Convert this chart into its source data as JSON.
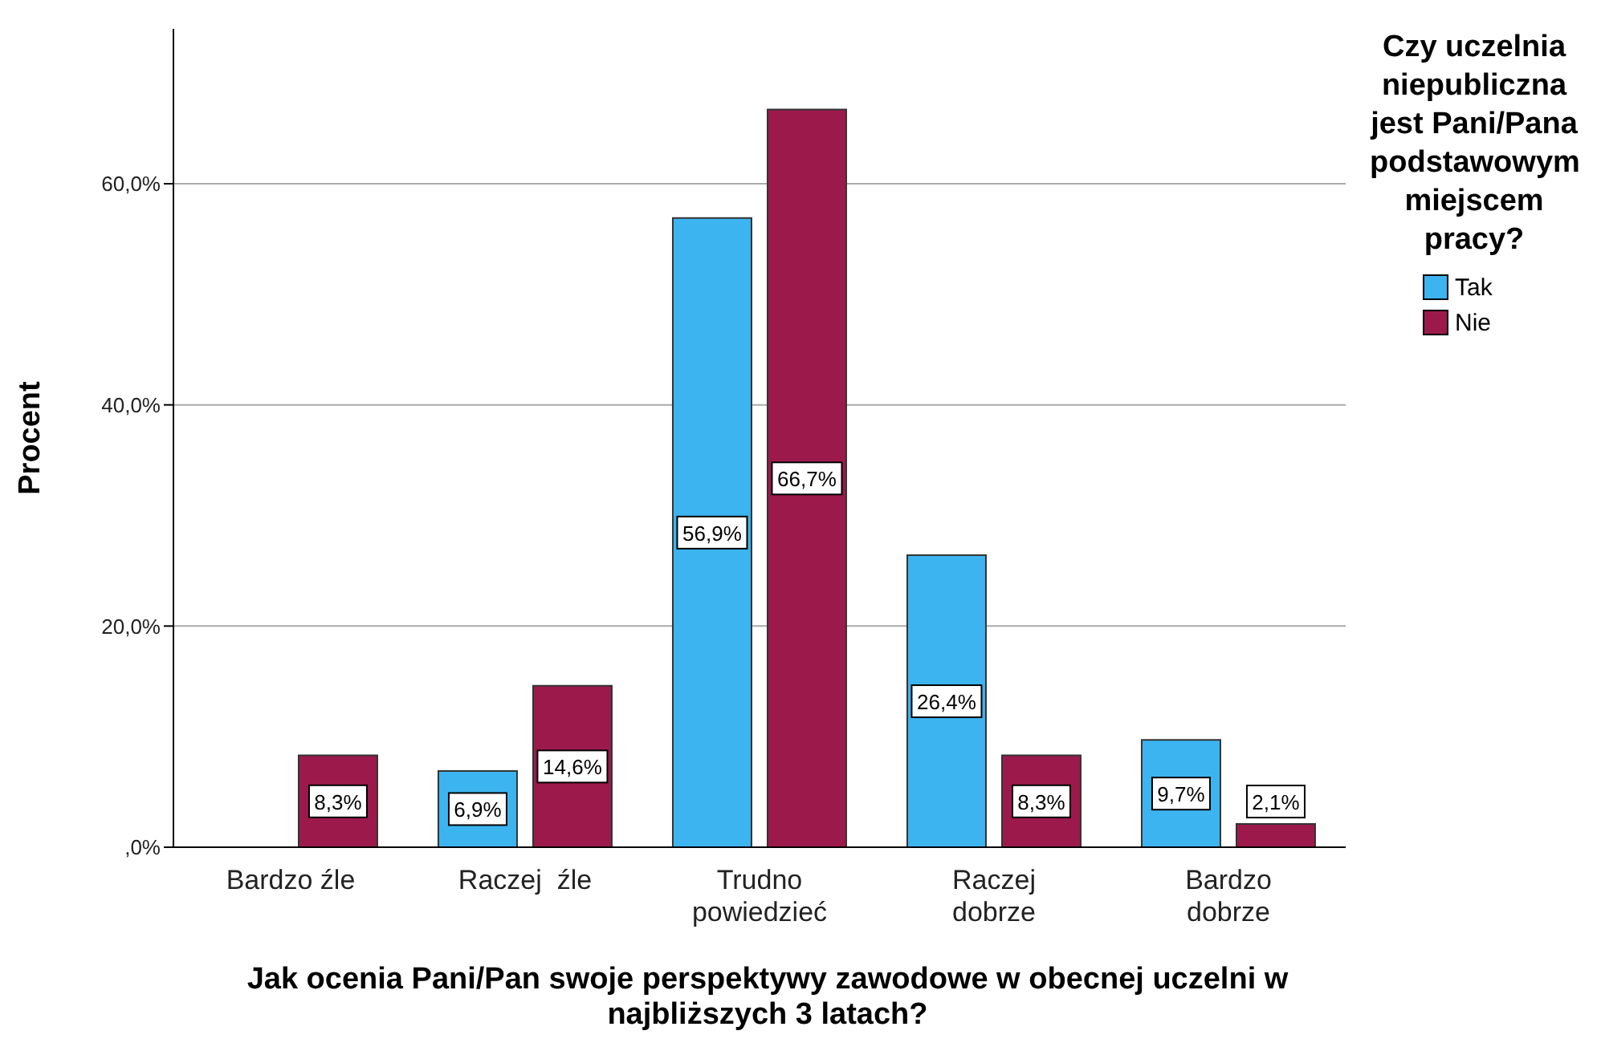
{
  "chart_data": {
    "type": "bar",
    "categories": [
      "Bardzo źle",
      "Raczej  źle",
      "Trudno\npowiedzieć",
      "Raczej\ndobrze",
      "Bardzo\ndobrze"
    ],
    "series": [
      {
        "name": "Tak",
        "color": "#3cb4f0",
        "values": [
          null,
          6.9,
          56.9,
          26.4,
          9.7
        ],
        "value_labels": [
          null,
          "6,9%",
          "56,9%",
          "26,4%",
          "9,7%"
        ]
      },
      {
        "name": "Nie",
        "color": "#9c1a4b",
        "values": [
          8.3,
          14.6,
          66.7,
          8.3,
          2.1
        ],
        "value_labels": [
          "8,3%",
          "14,6%",
          "66,7%",
          "8,3%",
          "2,1%"
        ]
      }
    ],
    "xlabel": "Jak ocenia Pani/Pan swoje perspektywy zawodowe w obecnej uczelni w najbliższych 3 latach?",
    "ylabel": "Procent",
    "legend_title": "Czy uczelnia niepubliczna jest Pani/Pana podstawowym miejscem pracy?",
    "ylim": [
      0,
      74
    ],
    "yticks": [
      {
        "value": 0,
        "label": ",0%"
      },
      {
        "value": 20,
        "label": "20,0%"
      },
      {
        "value": 40,
        "label": "40,0%"
      },
      {
        "value": 60,
        "label": "60,0%"
      }
    ],
    "grid": "y",
    "legend": "top right"
  }
}
